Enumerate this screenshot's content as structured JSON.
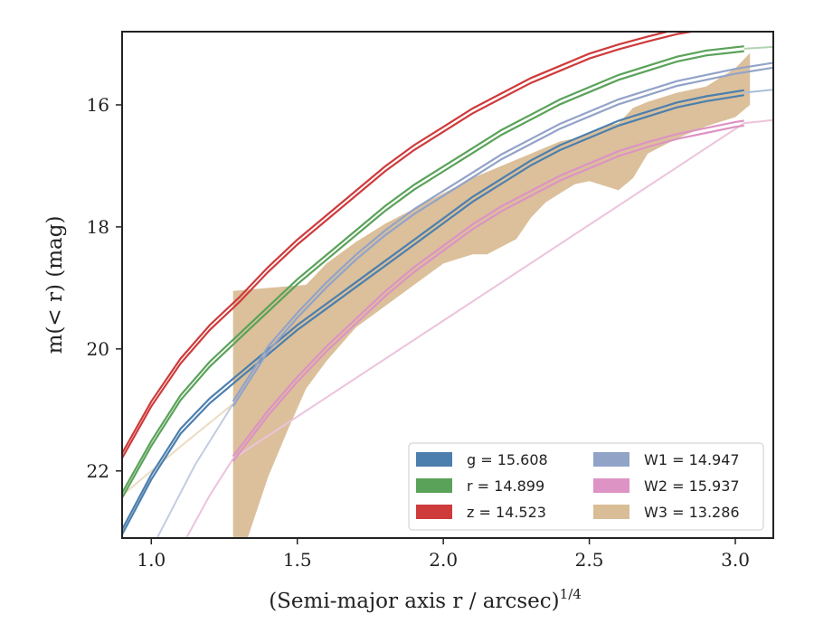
{
  "chart_data": {
    "type": "line",
    "xlabel": "(Semi-major axis r / arcsec)",
    "xlabel_sup": "1/4",
    "ylabel": "m(< r) (mag)",
    "xlim": [
      0.9,
      3.13
    ],
    "ylim": [
      23.1,
      14.8
    ],
    "x_ticks": [
      1.0,
      1.5,
      2.0,
      2.5,
      3.0
    ],
    "x_tick_labels": [
      "1.0",
      "1.5",
      "2.0",
      "2.5",
      "3.0"
    ],
    "y_ticks": [
      16,
      18,
      20,
      22
    ],
    "y_tick_labels": [
      "16",
      "18",
      "20",
      "22"
    ],
    "y_inverted": true,
    "legend_position": "lower-right",
    "series": [
      {
        "name": "g = 15.608",
        "color": "#4c7fae",
        "light": "#a9bfd6",
        "kind": "line",
        "x": [
          0.9,
          1.0,
          1.1,
          1.2,
          1.3,
          1.4,
          1.5,
          1.6,
          1.7,
          1.8,
          1.9,
          2.0,
          2.1,
          2.2,
          2.3,
          2.4,
          2.5,
          2.6,
          2.7,
          2.8,
          2.9,
          3.03
        ],
        "y": [
          23.0,
          22.1,
          21.35,
          20.85,
          20.45,
          20.05,
          19.65,
          19.3,
          18.95,
          18.6,
          18.25,
          17.9,
          17.55,
          17.25,
          16.95,
          16.7,
          16.5,
          16.3,
          16.15,
          16.0,
          15.9,
          15.8
        ],
        "x_ext": [
          3.03,
          3.13
        ],
        "y_ext": [
          15.8,
          15.75
        ]
      },
      {
        "name": "r = 14.899",
        "color": "#5aa25a",
        "light": "#b3d3b0",
        "kind": "line",
        "x": [
          0.9,
          1.0,
          1.1,
          1.2,
          1.3,
          1.4,
          1.5,
          1.6,
          1.7,
          1.8,
          1.9,
          2.0,
          2.1,
          2.2,
          2.3,
          2.4,
          2.5,
          2.6,
          2.7,
          2.8,
          2.9,
          3.03
        ],
        "y": [
          22.4,
          21.55,
          20.8,
          20.25,
          19.8,
          19.35,
          18.9,
          18.5,
          18.1,
          17.7,
          17.35,
          17.05,
          16.75,
          16.45,
          16.2,
          15.95,
          15.75,
          15.55,
          15.4,
          15.25,
          15.15,
          15.08
        ],
        "x_ext": [
          3.03,
          3.13
        ],
        "y_ext": [
          15.08,
          15.05
        ]
      },
      {
        "name": "z = 14.523",
        "color": "#cf3b3b",
        "light": "#e8a1a1",
        "kind": "line",
        "x": [
          0.9,
          1.0,
          1.1,
          1.2,
          1.3,
          1.4,
          1.5,
          1.6,
          1.7,
          1.8,
          1.9,
          2.0,
          2.1,
          2.2,
          2.3,
          2.4,
          2.5,
          2.6,
          2.7,
          2.8,
          2.9,
          3.03
        ],
        "y": [
          21.75,
          20.9,
          20.2,
          19.65,
          19.2,
          18.7,
          18.25,
          17.85,
          17.45,
          17.05,
          16.7,
          16.4,
          16.1,
          15.85,
          15.6,
          15.4,
          15.2,
          15.05,
          14.92,
          14.8,
          14.72,
          14.65
        ],
        "x_ext": [
          3.03,
          3.13
        ],
        "y_ext": [
          14.65,
          14.63
        ]
      },
      {
        "name": "W1 = 14.947",
        "color": "#92a3c8",
        "light": "#c3cde0",
        "kind": "line",
        "x": [
          1.28,
          1.4,
          1.5,
          1.6,
          1.7,
          1.8,
          1.9,
          2.0,
          2.1,
          2.2,
          2.3,
          2.4,
          2.5,
          2.6,
          2.7,
          2.8,
          2.9,
          3.0,
          3.13
        ],
        "y": [
          20.9,
          20.0,
          19.45,
          18.95,
          18.5,
          18.1,
          17.75,
          17.45,
          17.15,
          16.85,
          16.6,
          16.35,
          16.15,
          15.95,
          15.8,
          15.65,
          15.55,
          15.45,
          15.35
        ],
        "x_ext": [
          1.02,
          1.15,
          1.28
        ],
        "y_ext": [
          23.1,
          21.9,
          20.9
        ]
      },
      {
        "name": "W2 = 15.937",
        "color": "#dd93c3",
        "light": "#ecc3dc",
        "kind": "line",
        "x": [
          1.28,
          1.4,
          1.5,
          1.6,
          1.7,
          1.8,
          1.9,
          2.0,
          2.1,
          2.2,
          2.3,
          2.4,
          2.5,
          2.6,
          2.7,
          2.8,
          2.9,
          3.0,
          3.03
        ],
        "y": [
          21.8,
          21.05,
          20.5,
          20.0,
          19.55,
          19.1,
          18.7,
          18.35,
          18.0,
          17.7,
          17.45,
          17.2,
          17.0,
          16.8,
          16.65,
          16.52,
          16.42,
          16.32,
          16.3
        ],
        "x_ext": [
          1.12,
          1.2,
          1.28,
          1.28,
          3.03,
          3.13
        ],
        "y_ext": [
          23.1,
          22.4,
          21.8,
          21.8,
          16.3,
          16.25
        ]
      },
      {
        "name": "W3 = 13.286",
        "color": "#d9bd96",
        "light": "#ecdcc4",
        "kind": "band",
        "x_upper": [
          1.28,
          1.4,
          1.53,
          1.6,
          1.7,
          1.8,
          1.9,
          2.0,
          2.1,
          2.2,
          2.3,
          2.4,
          2.45,
          2.5,
          2.55,
          2.6,
          2.65,
          2.7,
          2.8,
          2.9,
          2.95,
          3.0,
          3.05
        ],
        "y_upper": [
          19.05,
          19.0,
          18.95,
          18.6,
          18.25,
          17.95,
          17.7,
          17.45,
          17.2,
          17.0,
          16.8,
          16.6,
          16.55,
          16.45,
          16.35,
          16.3,
          16.05,
          15.95,
          15.8,
          15.7,
          15.55,
          15.4,
          15.15
        ],
        "x_lower": [
          1.28,
          1.33,
          1.4,
          1.47,
          1.53,
          1.6,
          1.7,
          1.8,
          1.9,
          2.0,
          2.1,
          2.15,
          2.25,
          2.3,
          2.35,
          2.4,
          2.45,
          2.5,
          2.6,
          2.65,
          2.7,
          2.8,
          2.9,
          3.0,
          3.05
        ],
        "y_lower": [
          23.1,
          23.1,
          22.1,
          21.3,
          20.65,
          20.2,
          19.65,
          19.3,
          18.95,
          18.6,
          18.45,
          18.45,
          18.2,
          17.85,
          17.6,
          17.45,
          17.3,
          17.25,
          17.4,
          17.2,
          16.8,
          16.55,
          16.35,
          16.2,
          16.0
        ],
        "x_ext": [
          0.9,
          1.1,
          1.28
        ],
        "y_ext": [
          22.4,
          21.6,
          20.9
        ]
      }
    ]
  }
}
